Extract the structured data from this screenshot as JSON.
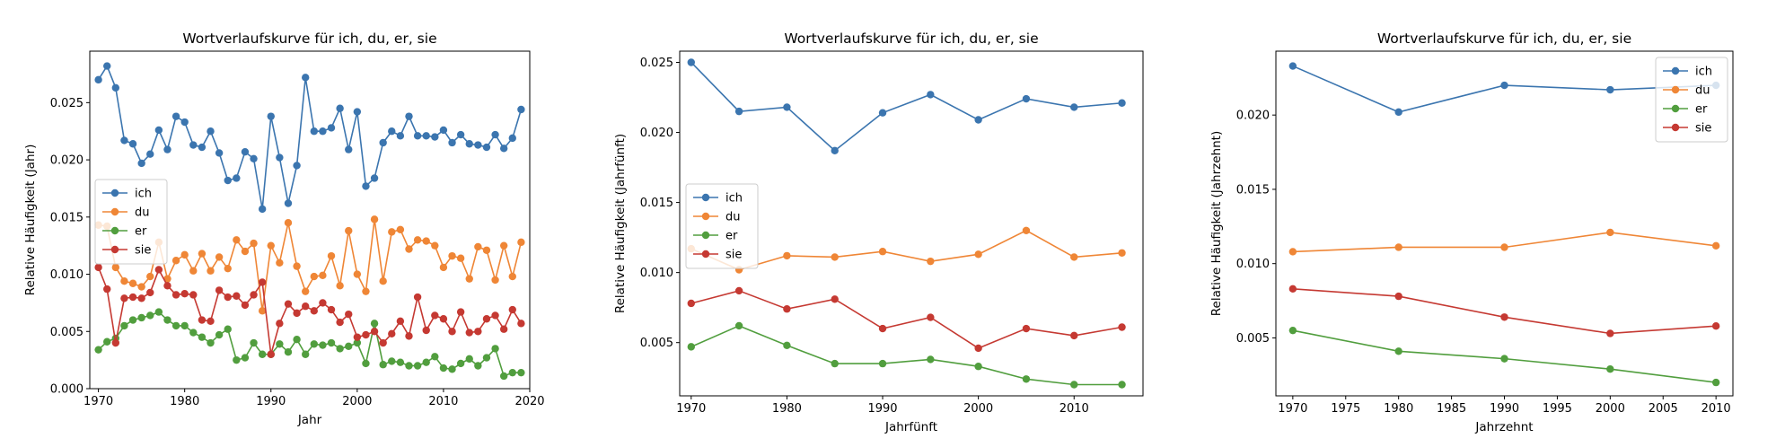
{
  "chart_data": [
    {
      "type": "line",
      "title": "Wortverlaufskurve für ich, du, er, sie",
      "xlabel": "Jahr",
      "ylabel": "Relative Häufigkeit (Jahr)",
      "xlim": [
        1969,
        2020
      ],
      "ylim": [
        0,
        0.0295
      ],
      "xticks": [
        1970,
        1980,
        1990,
        2000,
        2010,
        2020
      ],
      "yticks": [
        0.0,
        0.005,
        0.01,
        0.015,
        0.02,
        0.025
      ],
      "ytick_labels": [
        "0.000",
        "0.005",
        "0.010",
        "0.015",
        "0.020",
        "0.025"
      ],
      "legend_position": "center-left",
      "x": [
        1970,
        1971,
        1972,
        1973,
        1974,
        1975,
        1976,
        1977,
        1978,
        1979,
        1980,
        1981,
        1982,
        1983,
        1984,
        1985,
        1986,
        1987,
        1988,
        1989,
        1990,
        1991,
        1992,
        1993,
        1994,
        1995,
        1996,
        1997,
        1998,
        1999,
        2000,
        2001,
        2002,
        2003,
        2004,
        2005,
        2006,
        2007,
        2008,
        2009,
        2010,
        2011,
        2012,
        2013,
        2014,
        2015,
        2016,
        2017,
        2018,
        2019
      ],
      "series": [
        {
          "name": "ich",
          "color": "#3b75af",
          "values": [
            0.027,
            0.0282,
            0.0263,
            0.0217,
            0.0214,
            0.0197,
            0.0205,
            0.0226,
            0.0209,
            0.0238,
            0.0233,
            0.0213,
            0.0211,
            0.0225,
            0.0206,
            0.0182,
            0.0184,
            0.0207,
            0.0201,
            0.0157,
            0.0238,
            0.0202,
            0.0162,
            0.0195,
            0.0272,
            0.0225,
            0.0225,
            0.0228,
            0.0245,
            0.0209,
            0.0242,
            0.0177,
            0.0184,
            0.0215,
            0.0225,
            0.0221,
            0.0238,
            0.0221,
            0.0221,
            0.022,
            0.0226,
            0.0215,
            0.0222,
            0.0214,
            0.0213,
            0.0211,
            0.0222,
            0.021,
            0.0219,
            0.0244
          ]
        },
        {
          "name": "du",
          "color": "#ef8636",
          "values": [
            0.0143,
            0.0142,
            0.0106,
            0.0094,
            0.0092,
            0.0089,
            0.0098,
            0.0128,
            0.0096,
            0.0112,
            0.0117,
            0.0103,
            0.0118,
            0.0103,
            0.0115,
            0.0105,
            0.013,
            0.012,
            0.0127,
            0.0068,
            0.0125,
            0.011,
            0.0145,
            0.0107,
            0.0085,
            0.0098,
            0.0099,
            0.0116,
            0.009,
            0.0138,
            0.01,
            0.0085,
            0.0148,
            0.0094,
            0.0137,
            0.0139,
            0.0122,
            0.013,
            0.0129,
            0.0125,
            0.0106,
            0.0116,
            0.0114,
            0.0096,
            0.0124,
            0.0121,
            0.0095,
            0.0125,
            0.0098,
            0.0128
          ]
        },
        {
          "name": "er",
          "color": "#519e3e",
          "values": [
            0.0034,
            0.0041,
            0.0044,
            0.0055,
            0.006,
            0.0062,
            0.0064,
            0.0067,
            0.006,
            0.0055,
            0.0055,
            0.0049,
            0.0045,
            0.004,
            0.0047,
            0.0052,
            0.0025,
            0.0027,
            0.004,
            0.003,
            0.003,
            0.0039,
            0.0032,
            0.0043,
            0.003,
            0.0039,
            0.0038,
            0.004,
            0.0035,
            0.0037,
            0.004,
            0.0022,
            0.0057,
            0.0021,
            0.0024,
            0.0023,
            0.002,
            0.002,
            0.0023,
            0.0028,
            0.0018,
            0.0017,
            0.0022,
            0.0026,
            0.002,
            0.0027,
            0.0035,
            0.0011,
            0.0014,
            0.0014
          ]
        },
        {
          "name": "sie",
          "color": "#c53932",
          "values": [
            0.0106,
            0.0087,
            0.004,
            0.0079,
            0.008,
            0.0079,
            0.0084,
            0.0104,
            0.009,
            0.0082,
            0.0083,
            0.0082,
            0.006,
            0.0059,
            0.0086,
            0.008,
            0.0081,
            0.0073,
            0.0082,
            0.0093,
            0.003,
            0.0057,
            0.0074,
            0.0066,
            0.0072,
            0.0068,
            0.0075,
            0.0069,
            0.0058,
            0.0065,
            0.0045,
            0.0047,
            0.005,
            0.004,
            0.0048,
            0.0059,
            0.0046,
            0.008,
            0.0051,
            0.0064,
            0.0061,
            0.005,
            0.0067,
            0.0049,
            0.005,
            0.0061,
            0.0064,
            0.0052,
            0.0069,
            0.0057
          ]
        }
      ]
    },
    {
      "type": "line",
      "title": "Wortverlaufskurve für ich, du, er, sie",
      "xlabel": "Jahrfünft",
      "ylabel": "Relative Häufigkeit (Jahrfünft)",
      "xlim": [
        1968.8,
        2017.2
      ],
      "ylim": [
        0.0012,
        0.0258
      ],
      "xticks": [
        1970,
        1980,
        1990,
        2000,
        2010
      ],
      "yticks": [
        0.005,
        0.01,
        0.015,
        0.02,
        0.025
      ],
      "ytick_labels": [
        "0.005",
        "0.010",
        "0.015",
        "0.020",
        "0.025"
      ],
      "legend_position": "center-left",
      "x": [
        1970,
        1975,
        1980,
        1985,
        1990,
        1995,
        2000,
        2005,
        2010,
        2015
      ],
      "series": [
        {
          "name": "ich",
          "color": "#3b75af",
          "values": [
            0.025,
            0.0215,
            0.0218,
            0.0187,
            0.0214,
            0.0227,
            0.0209,
            0.0224,
            0.0218,
            0.0221
          ]
        },
        {
          "name": "du",
          "color": "#ef8636",
          "values": [
            0.0117,
            0.0102,
            0.0112,
            0.0111,
            0.0115,
            0.0108,
            0.0113,
            0.013,
            0.0111,
            0.0114
          ]
        },
        {
          "name": "er",
          "color": "#519e3e",
          "values": [
            0.0047,
            0.0062,
            0.0048,
            0.0035,
            0.0035,
            0.0038,
            0.0033,
            0.0024,
            0.002,
            0.002
          ]
        },
        {
          "name": "sie",
          "color": "#c53932",
          "values": [
            0.0078,
            0.0087,
            0.0074,
            0.0081,
            0.006,
            0.0068,
            0.0046,
            0.006,
            0.0055,
            0.0061
          ]
        }
      ]
    },
    {
      "type": "line",
      "title": "Wortverlaufskurve für ich, du, er, sie",
      "xlabel": "Jahrzehnt",
      "ylabel": "Relative Häufigkeit (Jahrzehnt)",
      "xlim": [
        1968.4,
        2011.6
      ],
      "ylim": [
        0.0011,
        0.0243
      ],
      "xticks": [
        1970,
        1975,
        1980,
        1985,
        1990,
        1995,
        2000,
        2005,
        2010
      ],
      "yticks": [
        0.005,
        0.01,
        0.015,
        0.02
      ],
      "ytick_labels": [
        "0.005",
        "0.010",
        "0.015",
        "0.020"
      ],
      "legend_position": "top-right",
      "x": [
        1970,
        1980,
        1990,
        2000,
        2010
      ],
      "series": [
        {
          "name": "ich",
          "color": "#3b75af",
          "values": [
            0.0233,
            0.0202,
            0.022,
            0.0217,
            0.022
          ]
        },
        {
          "name": "du",
          "color": "#ef8636",
          "values": [
            0.0108,
            0.0111,
            0.0111,
            0.0121,
            0.0112
          ]
        },
        {
          "name": "er",
          "color": "#519e3e",
          "values": [
            0.0055,
            0.0041,
            0.0036,
            0.0029,
            0.002
          ]
        },
        {
          "name": "sie",
          "color": "#c53932",
          "values": [
            0.0083,
            0.0078,
            0.0064,
            0.0053,
            0.0058
          ]
        }
      ]
    }
  ]
}
